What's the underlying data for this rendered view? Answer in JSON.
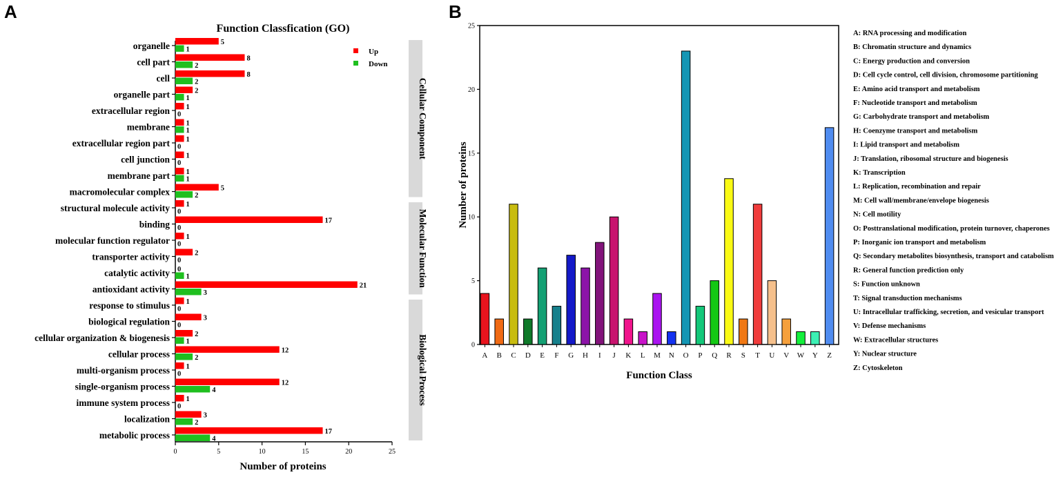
{
  "chart_data": [
    {
      "type": "bar",
      "orientation": "horizontal",
      "panel_label": "A",
      "title": "Function Classfication (GO)",
      "xlabel": "Number of proteins",
      "ylabel": "",
      "xlim": [
        0,
        25
      ],
      "xticks": [
        "0",
        "5",
        "10",
        "15",
        "20",
        "25"
      ],
      "categories": [
        "organelle",
        "cell part",
        "cell",
        "organelle part",
        "extracellular region",
        "membrane",
        "extracellular region part",
        "cell junction",
        "membrane part",
        "macromolecular complex",
        "structural molecule activity",
        "binding",
        "molecular function regulator",
        "transporter activity",
        "catalytic activity",
        "antioxidant activity",
        "response to stimulus",
        "biological regulation",
        "cellular  organization & biogenesis",
        "cellular process",
        "multi-organism process",
        "single-organism process",
        "immune system process",
        "localization",
        "metabolic process"
      ],
      "series": [
        {
          "name": "Up",
          "color": "#ff0000",
          "values": [
            5,
            8,
            8,
            2,
            1,
            1,
            1,
            1,
            1,
            5,
            1,
            17,
            1,
            2,
            0,
            21,
            1,
            3,
            2,
            12,
            1,
            12,
            1,
            3,
            17
          ]
        },
        {
          "name": "Down",
          "color": "#1fbf1f",
          "values": [
            1,
            2,
            2,
            1,
            0,
            1,
            0,
            0,
            1,
            2,
            0,
            0,
            0,
            0,
            1,
            3,
            0,
            0,
            1,
            2,
            0,
            4,
            0,
            2,
            4
          ]
        }
      ],
      "groups": [
        {
          "label": "Cellular Component",
          "start": 0,
          "end": 9
        },
        {
          "label": "Molecular Function",
          "start": 10,
          "end": 15
        },
        {
          "label": "Biological Process",
          "start": 16,
          "end": 24
        }
      ],
      "legend_position": "top-right"
    },
    {
      "type": "bar",
      "orientation": "vertical",
      "panel_label": "B",
      "title": "",
      "xlabel": "Function Class",
      "ylabel": "Number of proteins",
      "ylim": [
        0,
        25
      ],
      "yticks": [
        "0",
        "5",
        "10",
        "15",
        "20",
        "25"
      ],
      "categories": [
        "A",
        "B",
        "C",
        "D",
        "E",
        "F",
        "G",
        "H",
        "I",
        "J",
        "K",
        "L",
        "M",
        "N",
        "O",
        "P",
        "Q",
        "R",
        "S",
        "T",
        "U",
        "V",
        "W",
        "Y",
        "Z"
      ],
      "values": [
        4,
        2,
        11,
        2,
        6,
        3,
        7,
        6,
        8,
        10,
        2,
        1,
        4,
        1,
        23,
        3,
        5,
        13,
        2,
        11,
        5,
        2,
        1,
        1,
        17
      ],
      "colors": [
        "#e8141e",
        "#f06a14",
        "#c8bc10",
        "#0f7a2a",
        "#14a073",
        "#16808c",
        "#1419c8",
        "#8c14a8",
        "#82147a",
        "#c8146e",
        "#f0148c",
        "#c814c8",
        "#aa14f0",
        "#1432f0",
        "#1496b4",
        "#14c87a",
        "#14c814",
        "#fafa14",
        "#f07814",
        "#f03c3c",
        "#f5c08c",
        "#f5a03c",
        "#14f03c",
        "#3cf0b4",
        "#508cf0"
      ],
      "legend": [
        "A: RNA processing and modification",
        "B: Chromatin structure and dynamics",
        "C: Energy production and conversion",
        "D: Cell cycle control, cell division, chromosome partitioning",
        "E: Amino acid transport and metabolism",
        "F: Nucleotide transport and metabolism",
        "G: Carbohydrate transport and metabolism",
        "H: Coenzyme transport and metabolism",
        "I: Lipid transport and metabolism",
        "J: Translation, ribosomal structure and biogenesis",
        "K: Transcription",
        "L: Replication, recombination and repair",
        "M: Cell wall/membrane/envelope biogenesis",
        "N: Cell motility",
        "O: Posttranslational modification, protein turnover, chaperones",
        "P: Inorganic ion transport and metabolism",
        "Q: Secondary metabolites biosynthesis, transport and catabolism",
        "R: General function prediction only",
        "S: Function unknown",
        "T: Signal transduction mechanisms",
        "U: Intracellular trafficking, secretion, and vesicular transport",
        "V: Defense mechanisms",
        "W: Extracellular structures",
        "Y: Nuclear structure",
        "Z: Cytoskeleton"
      ],
      "legend_position": "right"
    }
  ]
}
